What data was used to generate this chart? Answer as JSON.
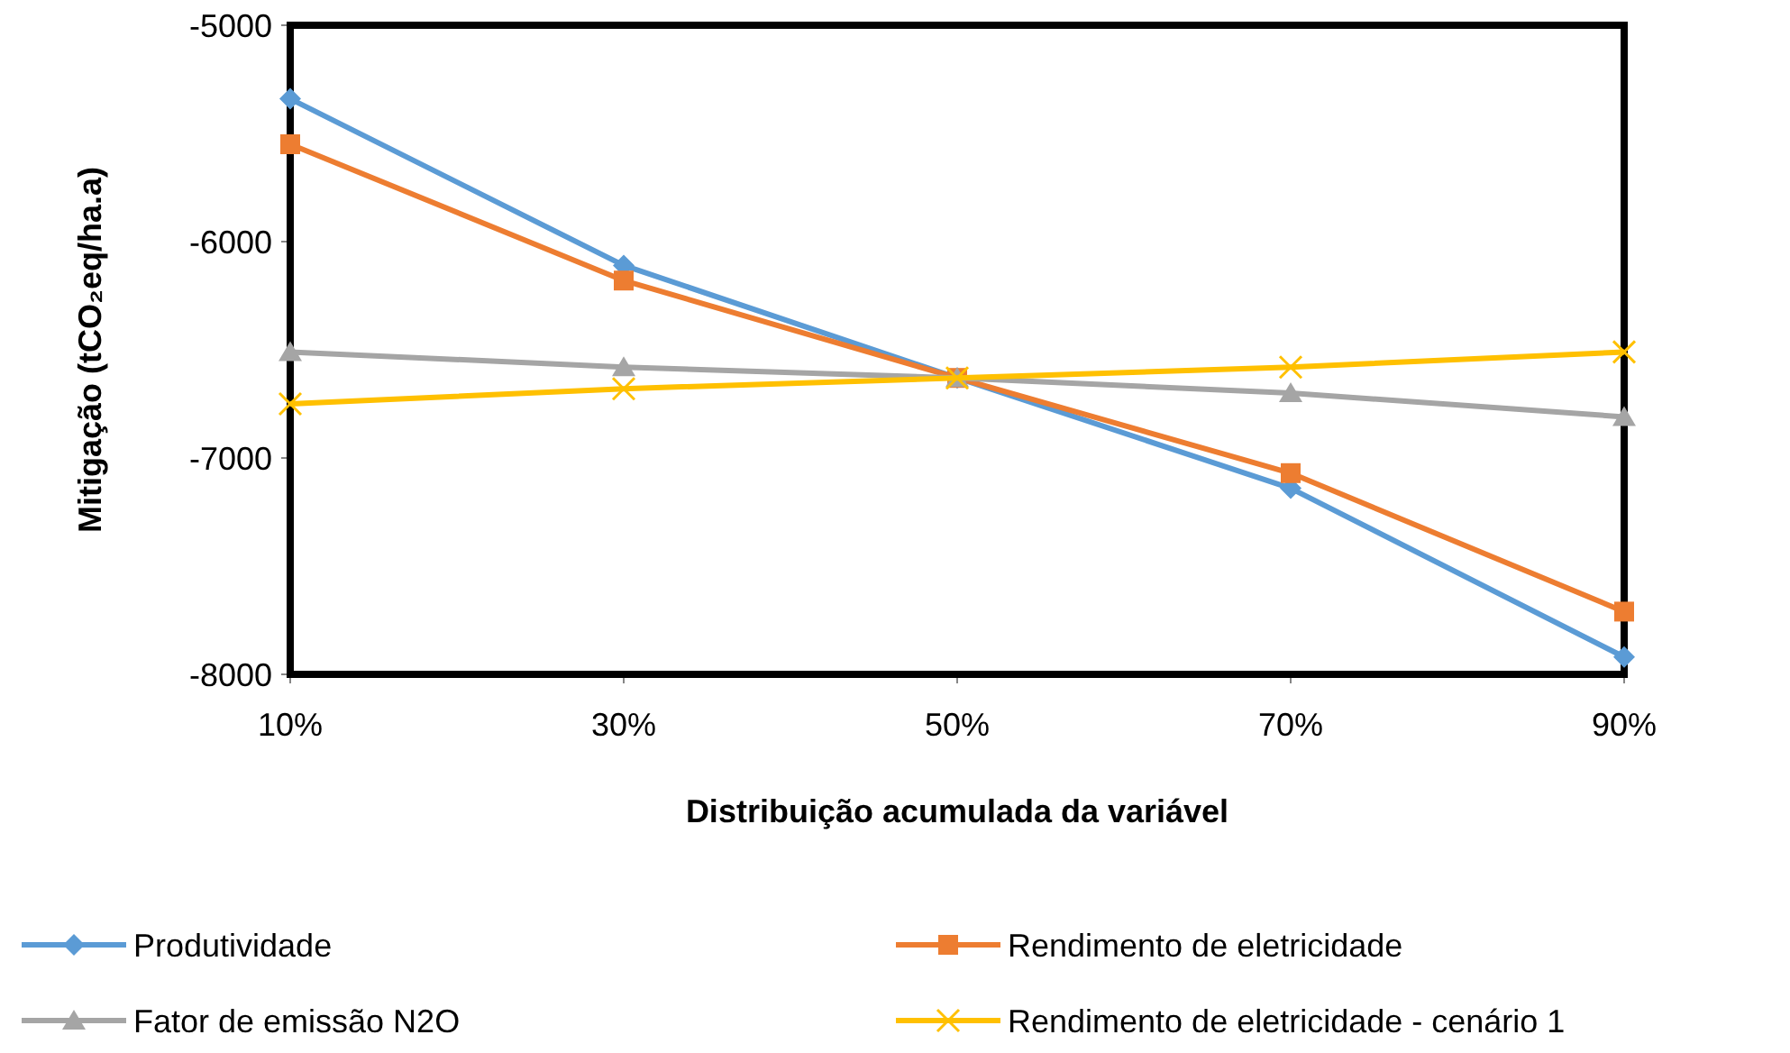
{
  "chart_data": {
    "type": "line",
    "xlabel": "Distribuição acumulada da variável",
    "ylabel": "Mitigação (tCO₂eq/ha.a)",
    "categories": [
      "10%",
      "30%",
      "50%",
      "70%",
      "90%"
    ],
    "ylim": [
      -8000,
      -5000
    ],
    "yticks": [
      -8000,
      -7000,
      -6000,
      -5000
    ],
    "grid": false,
    "legend": "bottom",
    "series": [
      {
        "name": "Produtividade",
        "color": "#5b9bd5",
        "marker": "diamond",
        "values": [
          -5340,
          -6110,
          -6630,
          -7140,
          -7920
        ]
      },
      {
        "name": "Rendimento de eletricidade",
        "color": "#ed7d31",
        "marker": "square",
        "values": [
          -5550,
          -6180,
          -6630,
          -7070,
          -7710
        ]
      },
      {
        "name": "Fator de emissão N2O",
        "color": "#a5a5a5",
        "marker": "triangle",
        "values": [
          -6510,
          -6580,
          -6630,
          -6700,
          -6810
        ]
      },
      {
        "name": "Rendimento de eletricidade - cenário 1",
        "color": "#ffc000",
        "marker": "cross",
        "values": [
          -6750,
          -6680,
          -6630,
          -6580,
          -6510
        ]
      }
    ]
  }
}
